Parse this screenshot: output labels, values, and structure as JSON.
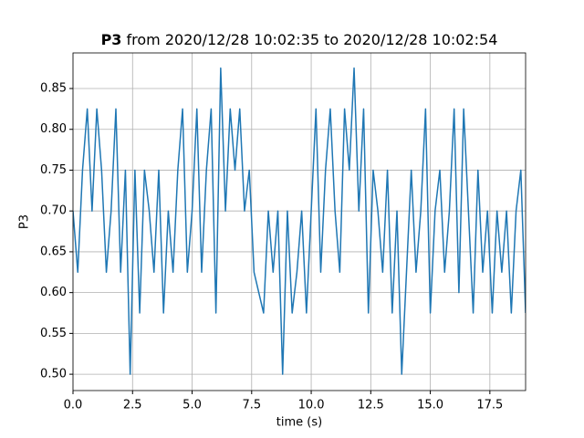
{
  "chart_data": {
    "type": "line",
    "title_bold": "P3",
    "title": "from 2020/12/28 10:02:35 to 2020/12/28 10:02:54",
    "x_label": "time (s)",
    "y_label": "P3",
    "x": [
      0,
      0.2,
      0.4,
      0.6,
      0.8,
      1,
      1.2,
      1.4,
      1.6,
      1.8,
      2,
      2.2,
      2.4,
      2.6,
      2.8,
      3,
      3.2,
      3.4,
      3.6,
      3.8,
      4,
      4.2,
      4.4,
      4.6,
      4.8,
      5,
      5.2,
      5.4,
      5.6,
      5.8,
      6,
      6.2,
      6.4,
      6.6,
      6.8,
      7,
      7.2,
      7.4,
      7.6,
      7.8,
      8,
      8.2,
      8.4,
      8.6,
      8.8,
      9,
      9.2,
      9.4,
      9.6,
      9.8,
      10,
      10.2,
      10.4,
      10.6,
      10.8,
      11,
      11.2,
      11.4,
      11.6,
      11.8,
      12,
      12.2,
      12.4,
      12.6,
      12.8,
      13,
      13.2,
      13.4,
      13.6,
      13.8,
      14,
      14.2,
      14.4,
      14.6,
      14.8,
      15,
      15.2,
      15.4,
      15.6,
      15.8,
      16,
      16.2,
      16.4,
      16.6,
      16.8,
      17,
      17.2,
      17.4,
      17.6,
      17.8,
      18,
      18.2,
      18.4,
      18.6,
      18.8,
      19
    ],
    "series": [
      {
        "name": "P3",
        "color": "#1f77b4",
        "values": [
          0.7,
          0.625,
          0.75,
          0.825,
          0.7,
          0.825,
          0.75,
          0.625,
          0.7,
          0.825,
          0.625,
          0.75,
          0.5,
          0.75,
          0.575,
          0.75,
          0.7,
          0.625,
          0.75,
          0.575,
          0.7,
          0.625,
          0.75,
          0.825,
          0.625,
          0.7,
          0.825,
          0.625,
          0.75,
          0.825,
          0.575,
          0.875,
          0.7,
          0.825,
          0.75,
          0.825,
          0.7,
          0.75,
          0.625,
          0.6,
          0.575,
          0.7,
          0.625,
          0.7,
          0.5,
          0.7,
          0.575,
          0.625,
          0.7,
          0.575,
          0.7,
          0.825,
          0.625,
          0.75,
          0.825,
          0.7,
          0.625,
          0.825,
          0.75,
          0.875,
          0.7,
          0.825,
          0.575,
          0.75,
          0.7,
          0.625,
          0.75,
          0.575,
          0.7,
          0.5,
          0.625,
          0.75,
          0.625,
          0.7,
          0.825,
          0.575,
          0.7,
          0.75,
          0.625,
          0.7,
          0.825,
          0.6,
          0.825,
          0.7,
          0.575,
          0.75,
          0.625,
          0.7,
          0.575,
          0.7,
          0.625,
          0.7,
          0.575,
          0.7,
          0.75,
          0.575
        ]
      }
    ],
    "xlim": [
      0,
      19
    ],
    "xticks": [
      {
        "value": 0,
        "label": "0.0"
      },
      {
        "value": 2.5,
        "label": "2.5"
      },
      {
        "value": 5,
        "label": "5.0"
      },
      {
        "value": 7.5,
        "label": "7.5"
      },
      {
        "value": 10,
        "label": "10.0"
      },
      {
        "value": 12.5,
        "label": "12.5"
      },
      {
        "value": 15,
        "label": "15.0"
      },
      {
        "value": 17.5,
        "label": "17.5"
      }
    ],
    "ylim": [
      0.48,
      0.8936
    ],
    "yticks": [
      {
        "value": 0.5,
        "label": "0.50"
      },
      {
        "value": 0.55,
        "label": "0.55"
      },
      {
        "value": 0.6,
        "label": "0.60"
      },
      {
        "value": 0.65,
        "label": "0.65"
      },
      {
        "value": 0.7,
        "label": "0.70"
      },
      {
        "value": 0.75,
        "label": "0.75"
      },
      {
        "value": 0.8,
        "label": "0.80"
      },
      {
        "value": 0.85,
        "label": "0.85"
      }
    ],
    "grid": true
  }
}
